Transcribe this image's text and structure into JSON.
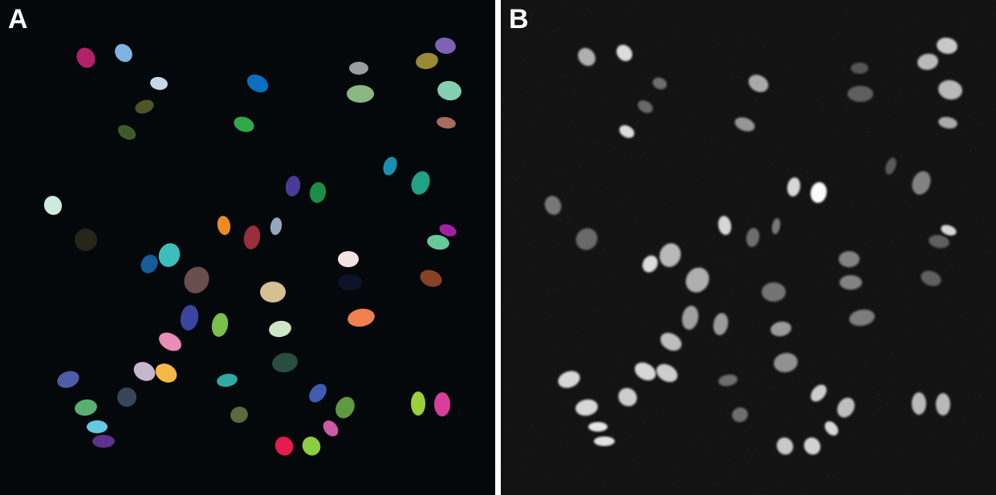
{
  "figure": {
    "panel_a": {
      "label": "A",
      "background": "#04080b",
      "description_kind": "segmentation-mask",
      "nucleus_colors": [
        "#b0216a",
        "#7fb2e0",
        "#7f61b5",
        "#9a8834",
        "#c5d8e8",
        "#0b6fc0",
        "#9a9c9f",
        "#8cb784",
        "#84cfb2",
        "#4e5426",
        "#3e5a2a",
        "#31a84a",
        "#a86b60",
        "#1a8fb0",
        "#1fa382",
        "#cdeada",
        "#4a3a96",
        "#1a8e46",
        "#ee8a24",
        "#9a2e3c",
        "#94a8bc",
        "#a121a2",
        "#26251a",
        "#67c89a",
        "#145c9a",
        "#3cbfba",
        "#6a4e4e",
        "#f3e0e0",
        "#d4c090",
        "#0d1428",
        "#874224",
        "#3a45a0",
        "#7ac04a",
        "#cfe6c6",
        "#f08050",
        "#ec8ab8",
        "#c6b8cc",
        "#f6b846",
        "#2a4e3e",
        "#4e5caa",
        "#384458",
        "#31aaa2",
        "#58b070",
        "#64cae0",
        "#5d328e",
        "#5a6a3c",
        "#3f5cb0",
        "#5e9a40",
        "#cc5aa6",
        "#9ccf3a",
        "#d83e9a",
        "#e41b4e",
        "#8cce42"
      ]
    },
    "panel_b": {
      "label": "B",
      "background": "#131313",
      "description_kind": "grayscale-fluorescence"
    }
  }
}
